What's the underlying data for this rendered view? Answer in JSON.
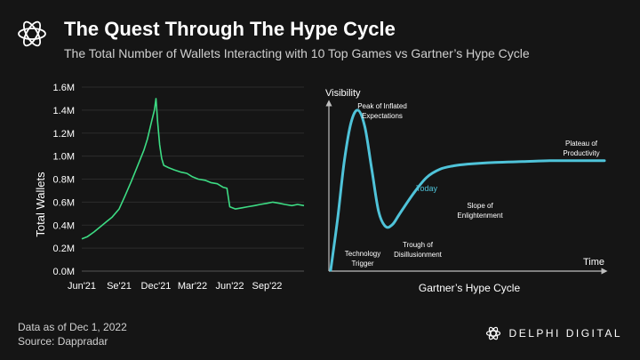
{
  "header": {
    "title": "The Quest Through The Hype Cycle",
    "subtitle": "The Total Number of Wallets Interacting with 10 Top Games vs Gartner’s Hype Cycle"
  },
  "footer": {
    "data_note": "Data as of Dec 1, 2022",
    "source": "Source: Dappradar",
    "brand": "DELPHI DIGITAL"
  },
  "icons": {
    "logo": "delphi-knot-icon",
    "brand_logo": "delphi-knot-icon"
  },
  "colors": {
    "background": "#151515",
    "line": "#3ddc84",
    "hype_curve": "#4fc3d9",
    "axis": "#bfbfbf"
  },
  "chart_data": [
    {
      "type": "line",
      "title": "",
      "xlabel": "",
      "ylabel": "Total Wallets",
      "ylim": [
        0,
        1600000
      ],
      "y_ticks": [
        0,
        200000,
        400000,
        600000,
        800000,
        1000000,
        1200000,
        1400000,
        1600000
      ],
      "y_tick_labels": [
        "0.0M",
        "0.2M",
        "0.4M",
        "0.6M",
        "0.8M",
        "1.0M",
        "1.2M",
        "1.4M",
        "1.6M"
      ],
      "x_ticks": [
        "2021-06-01",
        "2021-09-01",
        "2021-12-01",
        "2022-03-01",
        "2022-06-01",
        "2022-09-01"
      ],
      "x_tick_labels": [
        "Jun'21",
        "Se'21",
        "Dec'21",
        "Mar'22",
        "Jun'22",
        "Sep'22"
      ],
      "xlim": [
        "2021-06-01",
        "2022-12-01"
      ],
      "grid": "horizontal",
      "series": [
        {
          "color": "#3ddc84",
          "x": [
            "2021-06-01",
            "2021-06-15",
            "2021-07-01",
            "2021-07-15",
            "2021-08-01",
            "2021-08-15",
            "2021-09-01",
            "2021-09-15",
            "2021-10-01",
            "2021-10-15",
            "2021-11-01",
            "2021-11-10",
            "2021-11-20",
            "2021-11-27",
            "2021-12-01",
            "2021-12-05",
            "2021-12-10",
            "2021-12-15",
            "2021-12-20",
            "2022-01-01",
            "2022-01-15",
            "2022-02-01",
            "2022-02-15",
            "2022-03-01",
            "2022-03-15",
            "2022-04-01",
            "2022-04-15",
            "2022-05-01",
            "2022-05-15",
            "2022-05-25",
            "2022-06-01",
            "2022-06-15",
            "2022-07-01",
            "2022-07-15",
            "2022-08-01",
            "2022-08-15",
            "2022-09-01",
            "2022-09-15",
            "2022-10-01",
            "2022-10-15",
            "2022-11-01",
            "2022-11-15",
            "2022-12-01"
          ],
          "y": [
            280000,
            300000,
            340000,
            380000,
            430000,
            470000,
            540000,
            650000,
            780000,
            900000,
            1050000,
            1150000,
            1300000,
            1400000,
            1500000,
            1300000,
            1100000,
            980000,
            920000,
            900000,
            880000,
            860000,
            850000,
            820000,
            800000,
            790000,
            770000,
            760000,
            730000,
            720000,
            560000,
            540000,
            550000,
            560000,
            570000,
            580000,
            590000,
            600000,
            590000,
            580000,
            570000,
            580000,
            570000
          ]
        }
      ]
    },
    {
      "type": "line",
      "title": "Gartner’s Hype Cycle",
      "xlabel": "Time",
      "ylabel": "Visibility",
      "grid": "off",
      "highlight": {
        "label": "Today",
        "color": "#4fc3d9"
      },
      "annotations": [
        "Peak of Inflated Expectations",
        "Technology Trigger",
        "Trough of Disillusionment",
        "Slope of Enlightenment",
        "Plateau of Productivity"
      ],
      "series": [
        {
          "color": "#4fc3d9",
          "x": [
            0,
            1,
            2,
            3,
            4,
            5,
            6,
            7,
            8,
            9,
            10,
            12,
            14,
            16,
            18,
            20,
            24,
            28,
            32,
            36,
            40
          ],
          "y": [
            0,
            30,
            65,
            88,
            95,
            85,
            60,
            35,
            26,
            27,
            33,
            45,
            55,
            60,
            62,
            63,
            64,
            64.5,
            65,
            65,
            65
          ]
        }
      ]
    }
  ]
}
